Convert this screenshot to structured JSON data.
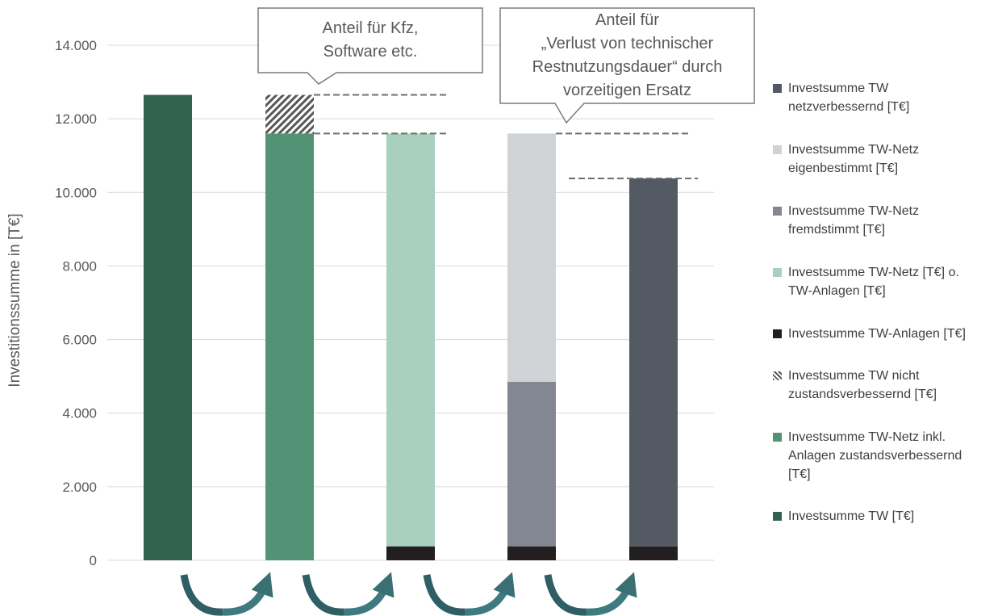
{
  "chart_data": {
    "type": "bar",
    "stacked": true,
    "ylabel": "Investitionssumme in [T€]",
    "ylim": [
      0,
      14000
    ],
    "yticks": [
      0,
      2000,
      4000,
      6000,
      8000,
      10000,
      12000,
      14000
    ],
    "ytick_labels": [
      "0",
      "2.000",
      "4.000",
      "6.000",
      "8.000",
      "10.000",
      "12.000",
      "14.000"
    ],
    "grid": true,
    "legend_position": "right",
    "num_categories": 5,
    "series": [
      {
        "name": "Investsumme TW [T€]",
        "color": "#336150",
        "pattern": "solid",
        "values": [
          12650,
          0,
          0,
          0,
          0
        ]
      },
      {
        "name": "Investsumme TW-Netz inkl. Anlagen zustandsverbessernd [T€]",
        "color": "#539375",
        "pattern": "solid",
        "values": [
          0,
          11600,
          0,
          0,
          0
        ]
      },
      {
        "name": "Investsumme TW nicht zustandsverbessernd [T€]",
        "color": "#595959",
        "pattern": "hatch",
        "values": [
          0,
          1050,
          0,
          0,
          0
        ]
      },
      {
        "name": "Investsumme TW-Anlagen [T€]",
        "color": "#231f20",
        "pattern": "solid",
        "values": [
          0,
          0,
          380,
          380,
          380
        ]
      },
      {
        "name": "Investsumme TW-Netz [T€] o. TW-Anlagen [T€]",
        "color": "#a9d0bf",
        "pattern": "solid",
        "values": [
          0,
          0,
          11220,
          0,
          0
        ]
      },
      {
        "name": "Investsumme TW-Netz fremdstimmt [T€]",
        "color": "#828791",
        "pattern": "solid",
        "values": [
          0,
          0,
          0,
          4470,
          0
        ]
      },
      {
        "name": "Investsumme TW-Netz eigenbestimmt [T€]",
        "color": "#d0d3d6",
        "pattern": "solid",
        "values": [
          0,
          0,
          0,
          6750,
          0
        ]
      },
      {
        "name": "Investsumme TW netzverbessernd [T€]",
        "color": "#545a63",
        "pattern": "solid",
        "values": [
          0,
          0,
          0,
          0,
          10000
        ]
      }
    ],
    "reference_lines": [
      {
        "from_bar": 1,
        "to_bar": 2,
        "value": 12650
      },
      {
        "from_bar": 1,
        "to_bar": 2,
        "value": 11600
      },
      {
        "from_bar": 3,
        "to_bar": 4,
        "value": 11600
      },
      {
        "from_bar": 4,
        "to_bar": 4,
        "value": 10380
      }
    ],
    "annotations": [
      {
        "lines": [
          "Anteil für Kfz,",
          "Software etc."
        ],
        "points_to_bar": 1
      },
      {
        "lines": [
          "Anteil für",
          "„Verlust von technischer",
          "Restnutzungsdauer“ durch",
          "vorzeitigen Ersatz"
        ],
        "points_to_bar": 3
      }
    ],
    "flow_arrows": 4
  },
  "legend": [
    {
      "label_line1": "Investsumme TW",
      "label_line2": "netzverbessernd [T€]",
      "label_line3": "",
      "color": "#545a63",
      "pattern": "solid"
    },
    {
      "label_line1": "Investsumme TW-Netz",
      "label_line2": "eigenbestimmt [T€]",
      "label_line3": "",
      "color": "#d0d3d6",
      "pattern": "solid"
    },
    {
      "label_line1": "Investsumme TW-Netz",
      "label_line2": "fremdstimmt [T€]",
      "label_line3": "",
      "color": "#828791",
      "pattern": "solid"
    },
    {
      "label_line1": "Investsumme TW-Netz [T€] o.",
      "label_line2": "TW-Anlagen [T€]",
      "label_line3": "",
      "color": "#a9d0bf",
      "pattern": "solid"
    },
    {
      "label_line1": "Investsumme TW-Anlagen [T€]",
      "label_line2": "",
      "label_line3": "",
      "color": "#231f20",
      "pattern": "solid"
    },
    {
      "label_line1": "Investsumme TW nicht",
      "label_line2": "zustandsverbessernd [T€]",
      "label_line3": "",
      "color": "#595959",
      "pattern": "hatch"
    },
    {
      "label_line1": "Investsumme TW-Netz inkl.",
      "label_line2": "Anlagen zustandsverbessernd",
      "label_line3": "[T€]",
      "color": "#539375",
      "pattern": "solid"
    },
    {
      "label_line1": "Investsumme TW [T€]",
      "label_line2": "",
      "label_line3": "",
      "color": "#336150",
      "pattern": "solid"
    }
  ]
}
